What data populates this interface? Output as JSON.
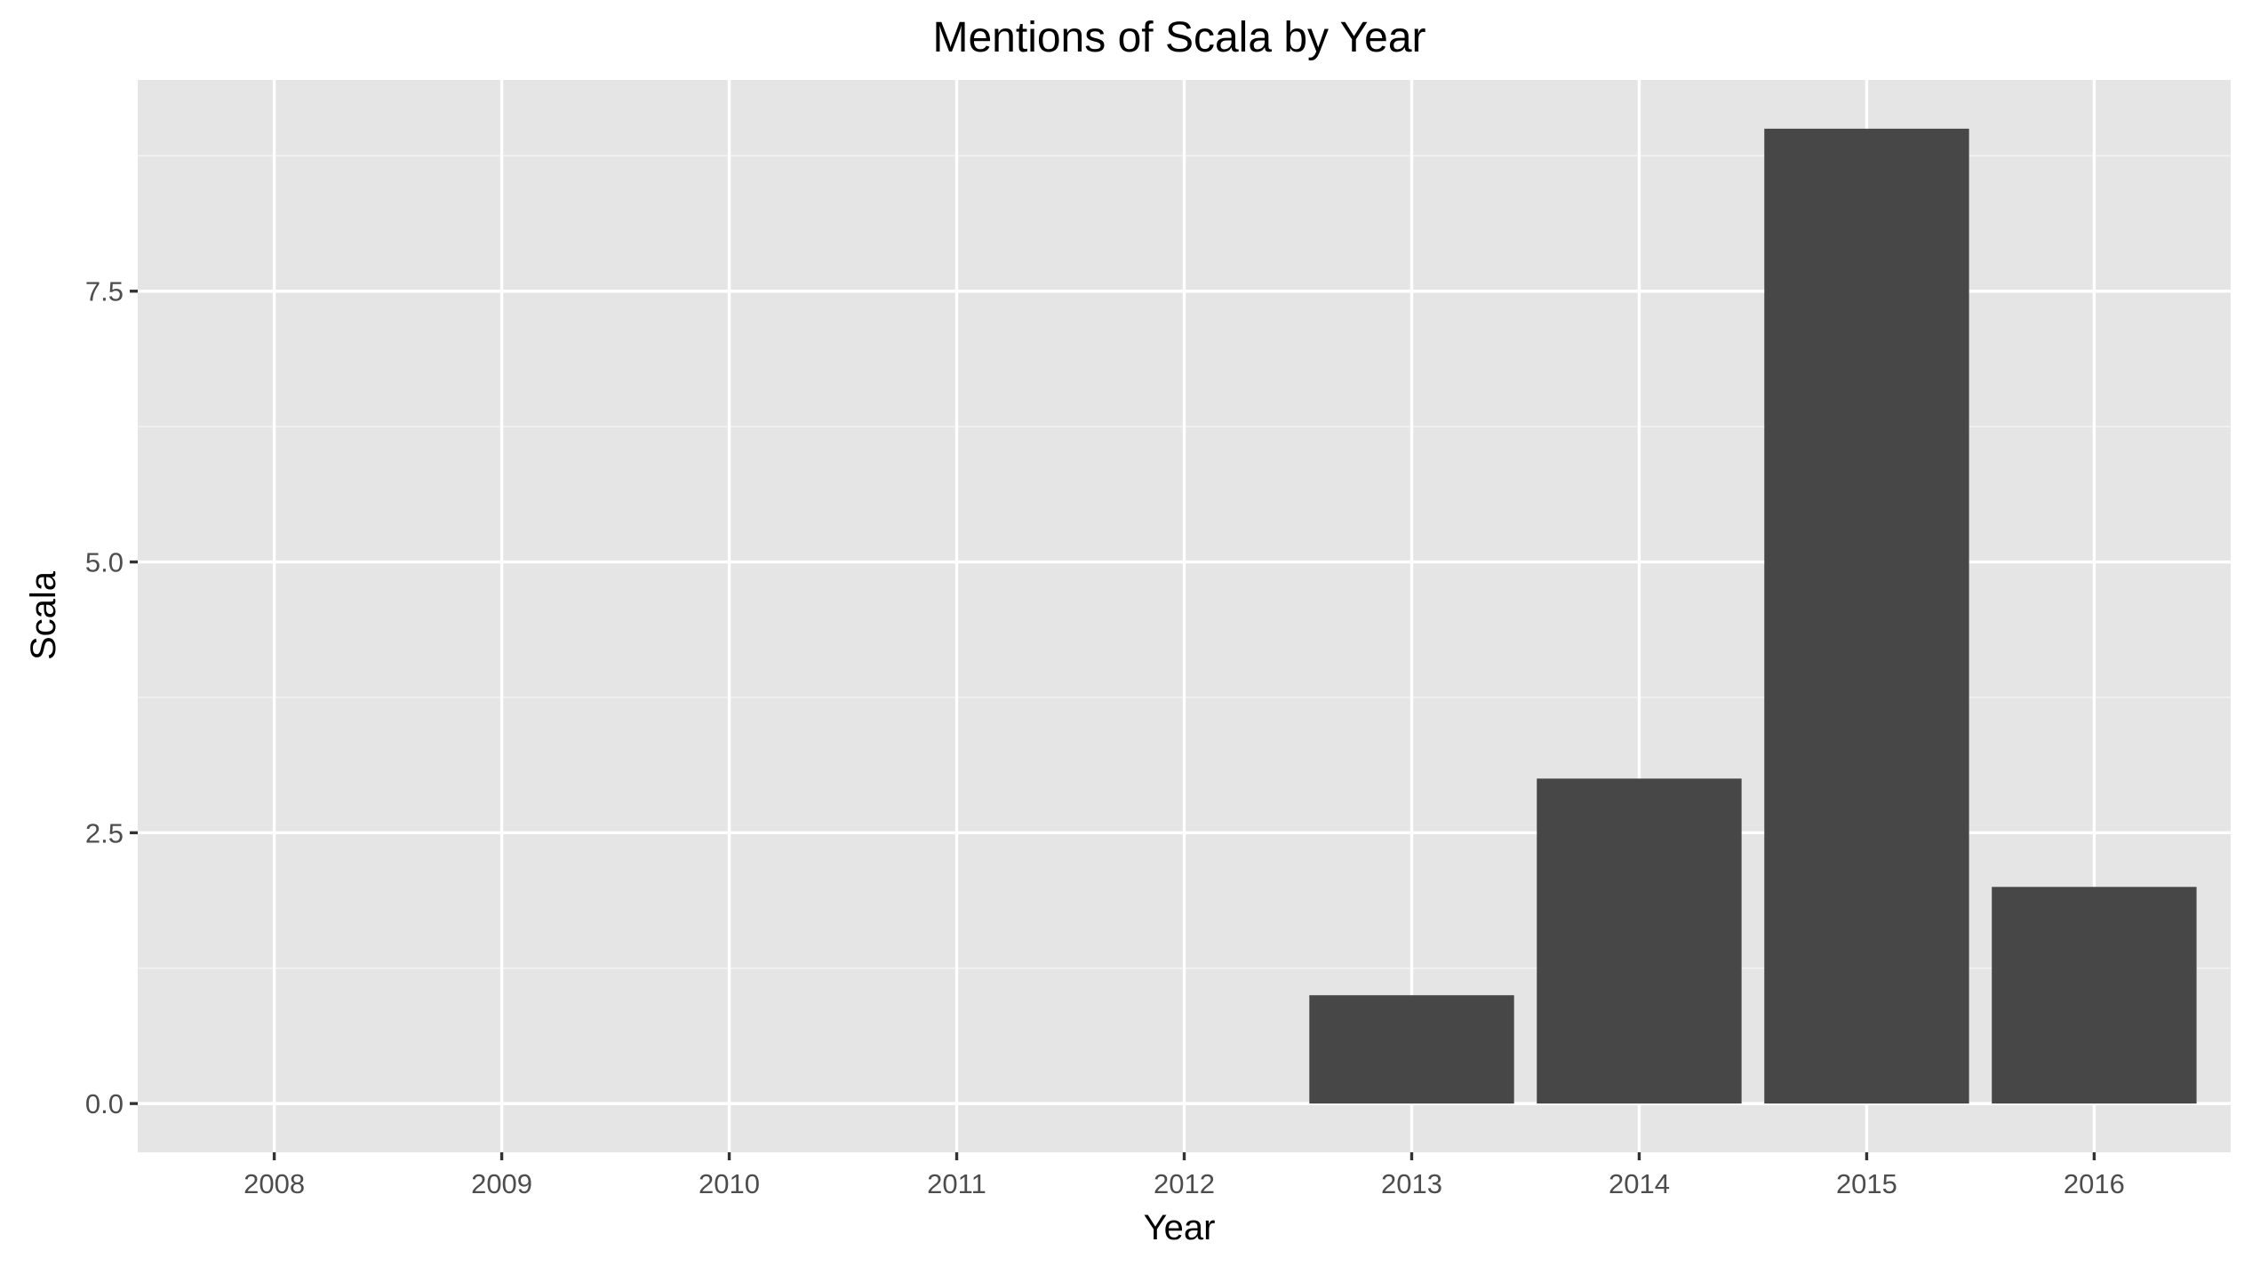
{
  "chart_data": {
    "type": "bar",
    "title": "Mentions of Scala by Year",
    "xlabel": "Year",
    "ylabel": "Scala",
    "categories": [
      "2008",
      "2009",
      "2010",
      "2011",
      "2012",
      "2013",
      "2014",
      "2015",
      "2016"
    ],
    "values": [
      0,
      0,
      0,
      0,
      0,
      1,
      3,
      9,
      2
    ],
    "ylim": [
      -0.45,
      9.45
    ],
    "yticks": [
      0.0,
      2.5,
      5.0,
      7.5
    ],
    "ytick_labels": [
      "0.0",
      "2.5",
      "5.0",
      "7.5"
    ],
    "grid": true,
    "legend": "none",
    "colors": {
      "bar": "#474747",
      "panel": "#e5e5e5",
      "grid": "#ffffff"
    }
  }
}
